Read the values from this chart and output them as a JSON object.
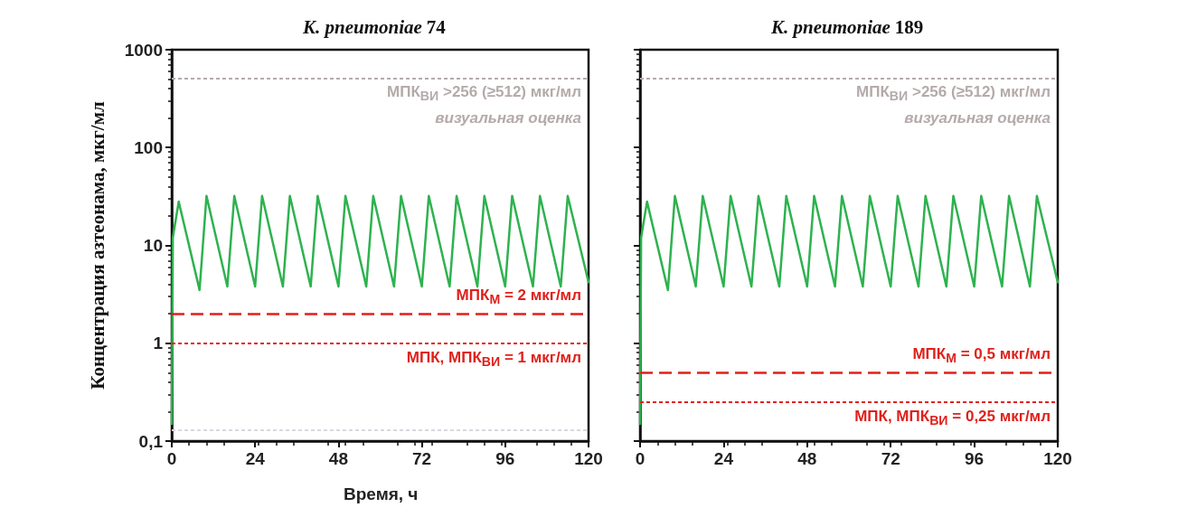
{
  "chart_data": [
    {
      "type": "line",
      "title": "K. pneumoniae 74",
      "ylabel": "Концентрация азтеонама, мкг/мл",
      "xlabel": "Время, ч",
      "x": [
        0,
        0.3,
        2,
        8,
        10,
        16,
        18,
        24,
        26,
        32,
        34,
        40,
        42,
        48,
        50,
        56,
        58,
        64,
        66,
        72,
        74,
        80,
        82,
        88,
        90,
        96,
        98,
        104,
        106,
        112,
        114,
        120
      ],
      "series": [
        {
          "color": "#2eb24f",
          "values": [
            0.15,
            12,
            28,
            3.5,
            32,
            3.8,
            32,
            3.8,
            32,
            3.8,
            32,
            3.8,
            32,
            3.8,
            32,
            3.8,
            32,
            3.8,
            32,
            3.8,
            32,
            3.8,
            32,
            3.8,
            32,
            3.8,
            32,
            3.8,
            32,
            3.8,
            32,
            4.2
          ]
        }
      ],
      "xlim": [
        0,
        120
      ],
      "xticks": [
        0,
        24,
        48,
        72,
        96,
        120
      ],
      "ylim": [
        0.1,
        1000
      ],
      "yticks": [
        {
          "value": 0.1,
          "label": "0,1"
        },
        1,
        10,
        100,
        1000
      ],
      "log": "y",
      "grid": false,
      "marker": "none",
      "line_style": "solid",
      "ref_lines": [
        {
          "axis": "y",
          "value": 512,
          "label": "МПК$_{ВИ}$ >256 (≥512) мкг/мл\nвизуальная оценка",
          "color": "#b5aaaa",
          "line_style": "dotted"
        },
        {
          "axis": "y",
          "value": 2,
          "label": "МПК$_{М}$ = 2 мкг/мл",
          "color": "#e0201b",
          "line_style": "dashed"
        },
        {
          "axis": "y",
          "value": 1,
          "label": "МПК, МПК$_{ВИ}$ = 1 мкг/мл",
          "color": "#e0201b",
          "line_style": "dotted"
        },
        {
          "axis": "y",
          "value": 0.125,
          "color": "#d8d8e0",
          "line_style": "dotted"
        }
      ]
    },
    {
      "type": "line",
      "title": "K. pneumoniae 189",
      "x": [
        0,
        0.3,
        2,
        8,
        10,
        16,
        18,
        24,
        26,
        32,
        34,
        40,
        42,
        48,
        50,
        56,
        58,
        64,
        66,
        72,
        74,
        80,
        82,
        88,
        90,
        96,
        98,
        104,
        106,
        112,
        114,
        120
      ],
      "series": [
        {
          "color": "#2eb24f",
          "values": [
            0.15,
            12,
            28,
            3.5,
            32,
            3.8,
            32,
            3.8,
            32,
            3.8,
            32,
            3.8,
            32,
            3.8,
            32,
            3.8,
            32,
            3.8,
            32,
            3.8,
            32,
            3.8,
            32,
            3.8,
            32,
            3.8,
            32,
            3.8,
            32,
            3.8,
            32,
            4.2
          ]
        }
      ],
      "xlim": [
        0,
        120
      ],
      "xticks": [
        0,
        24,
        48,
        72,
        96,
        120
      ],
      "ylim": [
        0.1,
        1000
      ],
      "yticks": [
        0.1,
        1,
        10,
        100,
        1000
      ],
      "log": "y",
      "grid": false,
      "marker": "none",
      "line_style": "solid",
      "tick_labels": "x",
      "ref_lines": [
        {
          "axis": "y",
          "value": 512,
          "label": "МПК$_{ВИ}$ >256 (≥512) мкг/мл\nвизуальная оценка",
          "color": "#b5aaaa",
          "line_style": "dotted"
        },
        {
          "axis": "y",
          "value": 0.5,
          "label": "МПК$_{М}$ = 0,5 мкг/мл",
          "color": "#e0201b",
          "line_style": "dashed"
        },
        {
          "axis": "y",
          "value": 0.25,
          "label": "МПК, МПК$_{ВИ}$ = 0,25 мкг/мл",
          "color": "#e0201b",
          "line_style": "dotted"
        }
      ]
    }
  ]
}
